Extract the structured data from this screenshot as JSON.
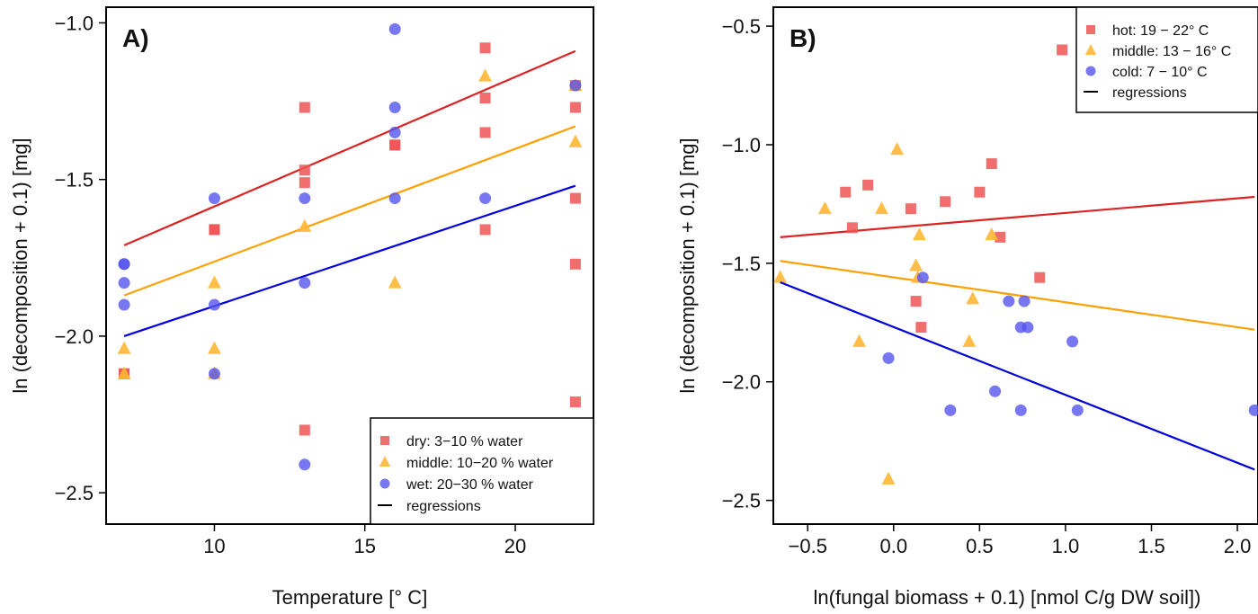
{
  "chart_data": [
    {
      "type": "scatter",
      "panel_label": "A)",
      "xlabel": "Temperature [° C]",
      "ylabel": "ln (decomposition + 0.1) [mg]",
      "xlim": [
        6.4,
        22.6
      ],
      "ylim": [
        -2.6,
        -0.95
      ],
      "x_ticks": [
        10,
        15,
        20
      ],
      "x_tick_labels": [
        "10",
        "15",
        "20"
      ],
      "y_ticks": [
        -1.0,
        -1.5,
        -2.0,
        -2.5
      ],
      "y_tick_labels": [
        "−1.0",
        "−1.5",
        "−2.0",
        "−2.5"
      ],
      "grid": false,
      "legend_position": "bottom-right",
      "legend": [
        {
          "label": "dry: 3−10 % water",
          "marker": "square",
          "color": "#ee5555"
        },
        {
          "label": "middle: 10−20 % water",
          "marker": "triangle",
          "color": "#ffb733"
        },
        {
          "label": "wet: 20−30 % water",
          "marker": "circle",
          "color": "#5555ee"
        },
        {
          "label": "regressions",
          "marker": "line",
          "color": "#000000"
        }
      ],
      "series": [
        {
          "name": "dry: 3−10 % water",
          "marker": "square",
          "color": "#ee5555",
          "points": [
            [
              7,
              -2.12
            ],
            [
              7,
              -2.12
            ],
            [
              10,
              -1.66
            ],
            [
              10,
              -1.66
            ],
            [
              13,
              -1.27
            ],
            [
              13,
              -1.47
            ],
            [
              13,
              -1.51
            ],
            [
              13,
              -2.3
            ],
            [
              16,
              -1.39
            ],
            [
              16,
              -1.39
            ],
            [
              19,
              -1.08
            ],
            [
              19,
              -1.24
            ],
            [
              19,
              -1.35
            ],
            [
              19,
              -1.66
            ],
            [
              22,
              -1.2
            ],
            [
              22,
              -1.27
            ],
            [
              22,
              -1.56
            ],
            [
              22,
              -1.77
            ],
            [
              22,
              -2.21
            ]
          ],
          "regression": {
            "x": [
              7,
              22
            ],
            "y": [
              -1.71,
              -1.09
            ],
            "color": "#dd2222"
          }
        },
        {
          "name": "middle: 10−20 % water",
          "marker": "triangle",
          "color": "#ffb733",
          "points": [
            [
              7,
              -2.04
            ],
            [
              7,
              -2.12
            ],
            [
              10,
              -1.83
            ],
            [
              10,
              -2.04
            ],
            [
              10,
              -2.12
            ],
            [
              13,
              -1.65
            ],
            [
              16,
              -1.83
            ],
            [
              19,
              -1.17
            ],
            [
              22,
              -1.2
            ],
            [
              22,
              -1.38
            ]
          ],
          "regression": {
            "x": [
              7,
              22
            ],
            "y": [
              -1.87,
              -1.33
            ],
            "color": "#ffa000"
          }
        },
        {
          "name": "wet: 20−30 % water",
          "marker": "circle",
          "color": "#5555ee",
          "points": [
            [
              7,
              -1.77
            ],
            [
              7,
              -1.77
            ],
            [
              7,
              -1.83
            ],
            [
              7,
              -1.9
            ],
            [
              10,
              -1.56
            ],
            [
              10,
              -1.9
            ],
            [
              10,
              -2.12
            ],
            [
              13,
              -1.56
            ],
            [
              13,
              -1.83
            ],
            [
              13,
              -2.41
            ],
            [
              16,
              -1.02
            ],
            [
              16,
              -1.27
            ],
            [
              16,
              -1.35
            ],
            [
              16,
              -1.56
            ],
            [
              19,
              -1.56
            ],
            [
              22,
              -1.2
            ]
          ],
          "regression": {
            "x": [
              7,
              22
            ],
            "y": [
              -2.0,
              -1.52
            ],
            "color": "#0000dd"
          }
        }
      ]
    },
    {
      "type": "scatter",
      "panel_label": "B)",
      "xlabel": "ln(fungal biomass + 0.1) [nmol C/g DW soil])",
      "ylabel": "ln (decomposition + 0.1) [mg]",
      "xlim": [
        -0.7,
        2.12
      ],
      "ylim": [
        -2.6,
        -0.42
      ],
      "x_ticks": [
        -0.5,
        0.0,
        0.5,
        1.0,
        1.5,
        2.0
      ],
      "x_tick_labels": [
        "−0.5",
        "0.0",
        "0.5",
        "1.0",
        "1.5",
        "2.0"
      ],
      "y_ticks": [
        -0.5,
        -1.0,
        -1.5,
        -2.0,
        -2.5
      ],
      "y_tick_labels": [
        "−0.5",
        "−1.0",
        "−1.5",
        "−2.0",
        "−2.5"
      ],
      "grid": false,
      "legend_position": "top-right",
      "legend": [
        {
          "label": "hot: 19 − 22° C",
          "marker": "square",
          "color": "#ee5555"
        },
        {
          "label": "middle: 13 − 16° C",
          "marker": "triangle",
          "color": "#ffb733"
        },
        {
          "label": "cold: 7 − 10° C",
          "marker": "circle",
          "color": "#5555ee"
        },
        {
          "label": "regressions",
          "marker": "line",
          "color": "#000000"
        }
      ],
      "series": [
        {
          "name": "hot: 19 − 22° C",
          "marker": "square",
          "color": "#ee5555",
          "points": [
            [
              -0.28,
              -1.2
            ],
            [
              -0.24,
              -1.35
            ],
            [
              -0.15,
              -1.17
            ],
            [
              0.1,
              -1.27
            ],
            [
              0.13,
              -1.66
            ],
            [
              0.16,
              -1.77
            ],
            [
              0.3,
              -1.24
            ],
            [
              0.5,
              -1.2
            ],
            [
              0.57,
              -1.08
            ],
            [
              0.62,
              -1.39
            ],
            [
              0.85,
              -1.56
            ],
            [
              0.98,
              -0.6
            ]
          ],
          "regression": {
            "x": [
              -0.66,
              2.1
            ],
            "y": [
              -1.39,
              -1.22
            ],
            "color": "#dd2222"
          }
        },
        {
          "name": "middle: 13 − 16° C",
          "marker": "triangle",
          "color": "#ffb733",
          "points": [
            [
              -0.66,
              -1.56
            ],
            [
              -0.4,
              -1.27
            ],
            [
              -0.2,
              -1.83
            ],
            [
              -0.07,
              -1.27
            ],
            [
              -0.03,
              -2.41
            ],
            [
              0.02,
              -1.02
            ],
            [
              0.13,
              -1.51
            ],
            [
              0.14,
              -1.56
            ],
            [
              0.15,
              -1.38
            ],
            [
              0.44,
              -1.83
            ],
            [
              0.46,
              -1.65
            ],
            [
              0.57,
              -1.38
            ]
          ],
          "regression": {
            "x": [
              -0.66,
              2.1
            ],
            "y": [
              -1.49,
              -1.78
            ],
            "color": "#ffa000"
          }
        },
        {
          "name": "cold: 7 − 10° C",
          "marker": "circle",
          "color": "#5555ee",
          "points": [
            [
              -0.03,
              -1.9
            ],
            [
              0.17,
              -1.56
            ],
            [
              0.33,
              -2.12
            ],
            [
              0.59,
              -2.04
            ],
            [
              0.67,
              -1.66
            ],
            [
              0.74,
              -1.77
            ],
            [
              0.74,
              -2.12
            ],
            [
              0.76,
              -1.66
            ],
            [
              0.78,
              -1.77
            ],
            [
              1.04,
              -1.83
            ],
            [
              1.07,
              -2.12
            ],
            [
              2.1,
              -2.12
            ]
          ],
          "regression": {
            "x": [
              -0.66,
              2.1
            ],
            "y": [
              -1.58,
              -2.37
            ],
            "color": "#0000dd"
          }
        }
      ]
    }
  ]
}
